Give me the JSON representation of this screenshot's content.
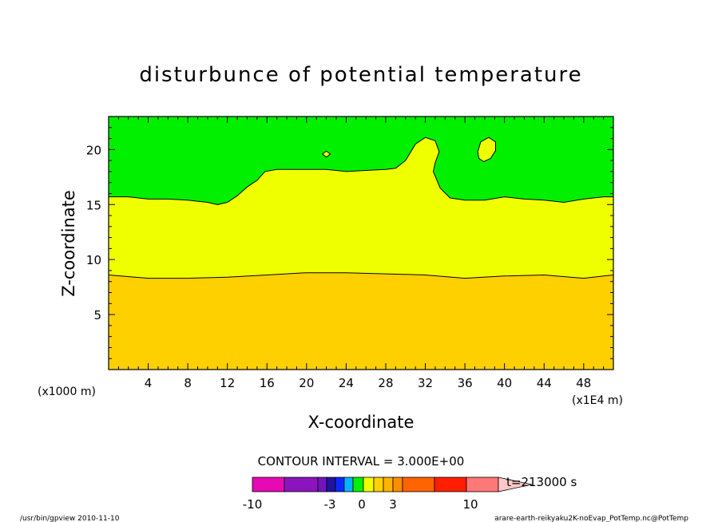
{
  "chart_data": {
    "type": "contour",
    "title": "disturbunce of potential temperature",
    "xlabel": "X-coordinate",
    "ylabel": "Z-coordinate",
    "x_unit_left": "(x1000 m)",
    "x_unit_right": "(x1E4 m)",
    "xlim": [
      0,
      51
    ],
    "ylim": [
      0,
      23
    ],
    "x_ticks": [
      4,
      8,
      12,
      16,
      20,
      24,
      28,
      32,
      36,
      40,
      44,
      48
    ],
    "y_ticks": [
      5,
      10,
      15,
      20
    ],
    "contour_interval_text": "CONTOUR INTERVAL = 3.000E+00",
    "time_label": "t=213000 s",
    "bands": [
      {
        "name": "lower",
        "color": "#ffd000",
        "range": [
          0,
          3
        ]
      },
      {
        "name": "middle",
        "color": "#f0ff00",
        "range": [
          -3,
          0
        ]
      },
      {
        "name": "upper",
        "color": "#00f000",
        "range": [
          -6,
          -3
        ]
      }
    ],
    "contours": {
      "lower_boundary": [
        [
          0,
          8.6
        ],
        [
          4,
          8.3
        ],
        [
          8,
          8.3
        ],
        [
          12,
          8.4
        ],
        [
          16,
          8.6
        ],
        [
          20,
          8.8
        ],
        [
          24,
          8.8
        ],
        [
          28,
          8.7
        ],
        [
          32,
          8.6
        ],
        [
          36,
          8.3
        ],
        [
          40,
          8.5
        ],
        [
          44,
          8.6
        ],
        [
          48,
          8.3
        ],
        [
          51,
          8.6
        ]
      ],
      "upper_boundary": [
        [
          0,
          15.7
        ],
        [
          2,
          15.7
        ],
        [
          4,
          15.5
        ],
        [
          6,
          15.5
        ],
        [
          8,
          15.4
        ],
        [
          10,
          15.2
        ],
        [
          11,
          15.0
        ],
        [
          12,
          15.2
        ],
        [
          13,
          15.8
        ],
        [
          14,
          16.6
        ],
        [
          15,
          17.2
        ],
        [
          15.8,
          18.0
        ],
        [
          17,
          18.2
        ],
        [
          20,
          18.2
        ],
        [
          22,
          18.2
        ],
        [
          24,
          18.0
        ],
        [
          26,
          18.1
        ],
        [
          28,
          18.2
        ],
        [
          29,
          18.3
        ],
        [
          30,
          19.0
        ],
        [
          31,
          20.5
        ],
        [
          32,
          21.1
        ],
        [
          33,
          20.8
        ],
        [
          33.4,
          19.8
        ],
        [
          33,
          18.8
        ],
        [
          32.8,
          18.0
        ],
        [
          33.5,
          16.5
        ],
        [
          34.5,
          15.6
        ],
        [
          36,
          15.4
        ],
        [
          38,
          15.4
        ],
        [
          40,
          15.7
        ],
        [
          42,
          15.5
        ],
        [
          44,
          15.4
        ],
        [
          46,
          15.2
        ],
        [
          48,
          15.5
        ],
        [
          50,
          15.7
        ],
        [
          51,
          15.7
        ]
      ],
      "islands": [
        {
          "points": [
            [
              21.6,
              19.6
            ],
            [
              22,
              19.85
            ],
            [
              22.4,
              19.6
            ],
            [
              22,
              19.3
            ]
          ]
        },
        {
          "points": [
            [
              37.3,
              19.8
            ],
            [
              37.6,
              20.7
            ],
            [
              38.4,
              21.1
            ],
            [
              39.1,
              20.7
            ],
            [
              39.1,
              19.9
            ],
            [
              38.6,
              19.2
            ],
            [
              37.9,
              18.9
            ],
            [
              37.4,
              19.2
            ]
          ]
        }
      ]
    },
    "colorbar": {
      "ticks": [
        "-10",
        "-3",
        "0",
        "3",
        "10"
      ],
      "swatches": [
        "#e60ab4",
        "#8c14be",
        "#7314be",
        "#1e14a0",
        "#0a28ff",
        "#00b4ff",
        "#00f000",
        "#f0ff00",
        "#ffd000",
        "#ffb400",
        "#ff8c00",
        "#ff6400",
        "#ff1e00",
        "#ff7878",
        "#ffc8c8"
      ]
    }
  },
  "footer": {
    "left": "/usr/bin/gpview   2010-11-10",
    "right": "arare-earth-reikyaku2K-noEvap_PotTemp.nc@PotTemp"
  }
}
